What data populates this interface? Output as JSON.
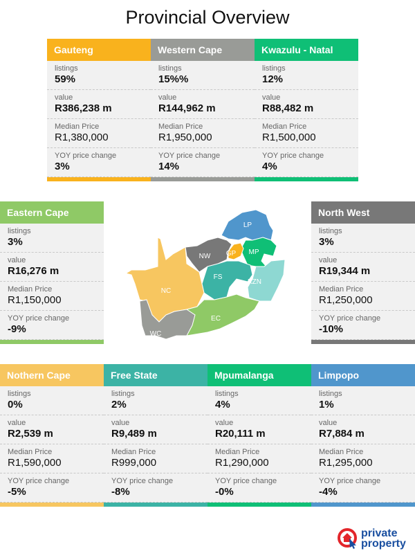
{
  "title": "Provincial Overview",
  "labels": {
    "listings": "listings",
    "value": "value",
    "median_price": "Median Price",
    "yoy": "YOY price change"
  },
  "provinces": [
    {
      "name": "Gauteng",
      "code": "GP",
      "color": "#f9b21d",
      "listings": "59%",
      "value": "R386,238 m",
      "median_price": "R1,380,000",
      "yoy": "3%"
    },
    {
      "name": "Western Cape",
      "code": "WC",
      "color": "#999b97",
      "listings": "15%%",
      "value": "R144,962 m",
      "median_price": "R1,950,000",
      "yoy": "14%"
    },
    {
      "name": "Kwazulu - Natal",
      "code": "KZN",
      "color": "#0fbf76",
      "listings": "12%",
      "value": "R88,482 m",
      "median_price": "R1,500,000",
      "yoy": "4%"
    },
    {
      "name": "Eastern Cape",
      "code": "EC",
      "color": "#8fc966",
      "listings": "3%",
      "value": "R16,276 m",
      "median_price": "R1,150,000",
      "yoy": "-9%"
    },
    {
      "name": "North West",
      "code": "NW",
      "color": "#787878",
      "listings": "3%",
      "value": "R19,344 m",
      "median_price": "R1,250,000",
      "yoy": "-10%"
    },
    {
      "name": "Nothern Cape",
      "code": "NC",
      "color": "#f7c660",
      "listings": "0%",
      "value": "R2,539 m",
      "median_price": "R1,590,000",
      "yoy": "-5%"
    },
    {
      "name": "Free State",
      "code": "FS",
      "color": "#3cb3a5",
      "listings": "2%",
      "value": "R9,489 m",
      "median_price": "R999,000",
      "yoy": "-8%"
    },
    {
      "name": "Mpumalanga",
      "code": "MP",
      "color": "#0fbf76",
      "listings": "4%",
      "value": "R20,111 m",
      "median_price": "R1,290,000",
      "yoy": "-0%"
    },
    {
      "name": "Limpopo",
      "code": "LP",
      "color": "#5096cc",
      "listings": "1%",
      "value": "R7,884 m",
      "median_price": "R1,295,000",
      "yoy": "-4%"
    }
  ],
  "map_colors": {
    "KZN_map": "#8ed8d2"
  },
  "logo": {
    "line1": "private",
    "line2": "property",
    "brand_red": "#e3262b",
    "brand_blue": "#1a4fa0"
  }
}
